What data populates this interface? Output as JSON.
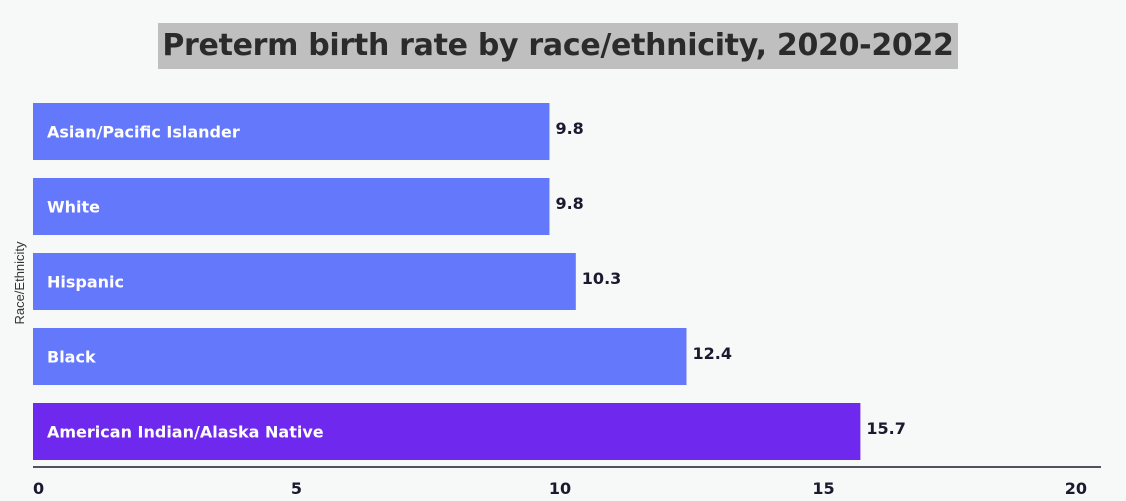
{
  "chart_data": {
    "type": "bar",
    "orientation": "horizontal",
    "title": "Preterm birth rate by race/ethnicity, 2020-2022",
    "ylabel": "Race/Ethnicity",
    "xlabel": "",
    "categories": [
      "Asian/Pacific Islander",
      "White",
      "Hispanic",
      "Black",
      "American Indian/Alaska Native"
    ],
    "values": [
      9.8,
      9.8,
      10.3,
      12.4,
      15.7
    ],
    "value_labels": [
      "9.8",
      "9.8",
      "10.3",
      "12.4",
      "15.7"
    ],
    "xlim": [
      0,
      20
    ],
    "x_ticks": [
      0,
      5,
      10,
      15,
      20
    ],
    "x_tick_labels": [
      "0",
      "5",
      "10",
      "15",
      "20"
    ],
    "grid": false,
    "bar_colors": [
      "#6478fc",
      "#6478fc",
      "#6478fc",
      "#6478fc",
      "#6f28ee"
    ]
  }
}
